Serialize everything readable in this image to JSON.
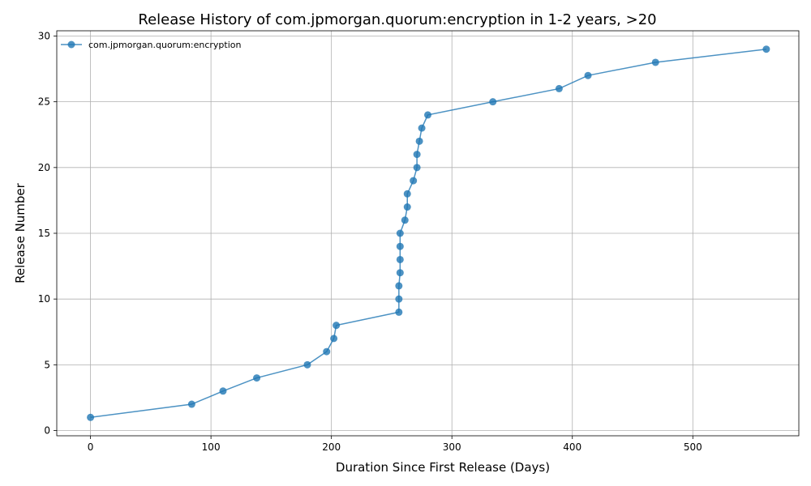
{
  "chart_data": {
    "type": "line",
    "title": "Release History of com.jpmorgan.quorum:encryption in 1-2 years, >20",
    "xlabel": "Duration Since First Release (Days)",
    "ylabel": "Release Number",
    "xlim": [
      -28,
      588
    ],
    "ylim": [
      -0.4,
      30.4
    ],
    "x_ticks": [
      0,
      100,
      200,
      300,
      400,
      500
    ],
    "y_ticks": [
      0,
      5,
      10,
      15,
      20,
      25,
      30
    ],
    "grid": true,
    "legend_position": "upper left",
    "series": [
      {
        "name": "com.jpmorgan.quorum:encryption",
        "color": "#1f77b4",
        "marker": "circle",
        "points": [
          {
            "x": 0,
            "y": 1
          },
          {
            "x": 84,
            "y": 2
          },
          {
            "x": 110,
            "y": 3
          },
          {
            "x": 138,
            "y": 4
          },
          {
            "x": 180,
            "y": 5
          },
          {
            "x": 196,
            "y": 6
          },
          {
            "x": 202,
            "y": 7
          },
          {
            "x": 204,
            "y": 8
          },
          {
            "x": 256,
            "y": 9
          },
          {
            "x": 256,
            "y": 10
          },
          {
            "x": 256,
            "y": 11
          },
          {
            "x": 257,
            "y": 12
          },
          {
            "x": 257,
            "y": 13
          },
          {
            "x": 257,
            "y": 14
          },
          {
            "x": 257,
            "y": 15
          },
          {
            "x": 261,
            "y": 16
          },
          {
            "x": 263,
            "y": 17
          },
          {
            "x": 263,
            "y": 18
          },
          {
            "x": 268,
            "y": 19
          },
          {
            "x": 271,
            "y": 20
          },
          {
            "x": 271,
            "y": 21
          },
          {
            "x": 273,
            "y": 22
          },
          {
            "x": 275,
            "y": 23
          },
          {
            "x": 280,
            "y": 24
          },
          {
            "x": 334,
            "y": 25
          },
          {
            "x": 389,
            "y": 26
          },
          {
            "x": 413,
            "y": 27
          },
          {
            "x": 469,
            "y": 28
          },
          {
            "x": 561,
            "y": 29
          }
        ]
      }
    ]
  }
}
